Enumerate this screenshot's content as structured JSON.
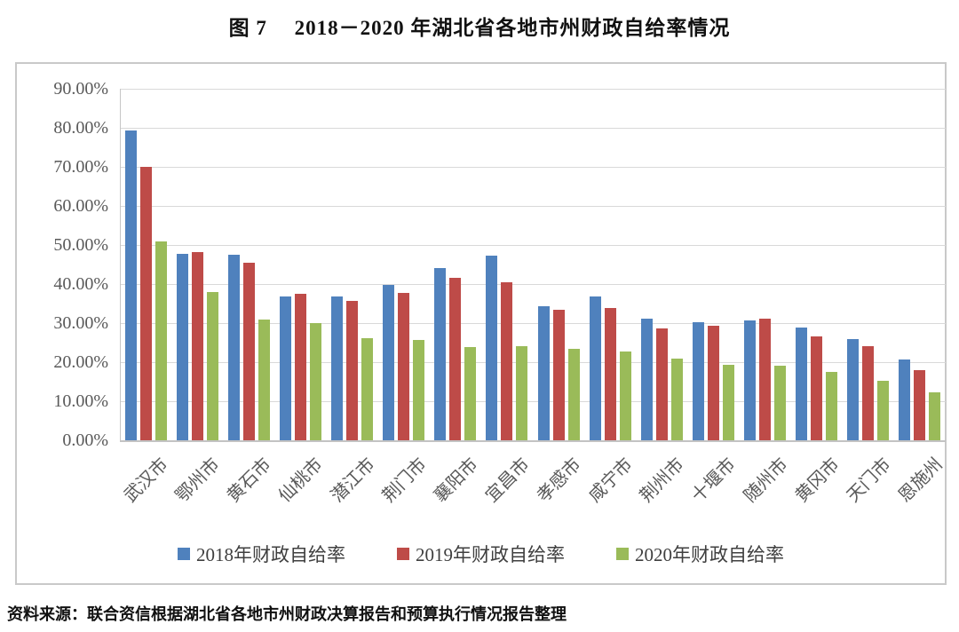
{
  "page": {
    "title": "图 7　 2018－2020 年湖北省各地市州财政自给率情况",
    "source_note": "资料来源：联合资信根据湖北省各地市州财政决算报告和预算执行情况报告整理"
  },
  "colors": {
    "series_2018": "#4F81BD",
    "series_2019": "#BE4B48",
    "series_2020": "#9ABB59",
    "gridline": "#d9d9d9",
    "axis_text": "#595959"
  },
  "chart_data": {
    "type": "bar",
    "title": "图 7　 2018－2020 年湖北省各地市州财政自给率情况",
    "categories": [
      "武汉市",
      "鄂州市",
      "黄石市",
      "仙桃市",
      "潜江市",
      "荆门市",
      "襄阳市",
      "宜昌市",
      "孝感市",
      "咸宁市",
      "荆州市",
      "十堰市",
      "随州市",
      "黄冈市",
      "天门市",
      "恩施州"
    ],
    "series": [
      {
        "name": "2018年财政自给率",
        "color": "#4F81BD",
        "values": [
          79.3,
          47.8,
          47.6,
          36.9,
          36.9,
          39.7,
          44.2,
          47.2,
          34.3,
          36.9,
          31.1,
          30.3,
          30.7,
          28.9,
          26.0,
          20.6
        ]
      },
      {
        "name": "2019年财政自给率",
        "color": "#BE4B48",
        "values": [
          69.9,
          48.2,
          45.5,
          37.5,
          35.7,
          37.7,
          41.5,
          40.5,
          33.3,
          33.9,
          28.6,
          29.4,
          31.1,
          26.7,
          24.1,
          18.0
        ]
      },
      {
        "name": "2020年财政自给率",
        "color": "#9ABB59",
        "values": [
          51.0,
          38.0,
          30.9,
          29.9,
          26.1,
          25.6,
          23.9,
          24.0,
          23.5,
          22.8,
          21.0,
          19.3,
          19.0,
          17.5,
          15.2,
          12.3
        ]
      }
    ],
    "ylabel": "",
    "xlabel": "",
    "ylim": [
      0,
      90
    ],
    "ytick_step": 10,
    "ytick_labels": [
      "90.00%",
      "80.00%",
      "70.00%",
      "60.00%",
      "50.00%",
      "40.00%",
      "30.00%",
      "20.00%",
      "10.00%",
      "0.00%"
    ],
    "grid": "horizontal",
    "legend_position": "bottom"
  }
}
